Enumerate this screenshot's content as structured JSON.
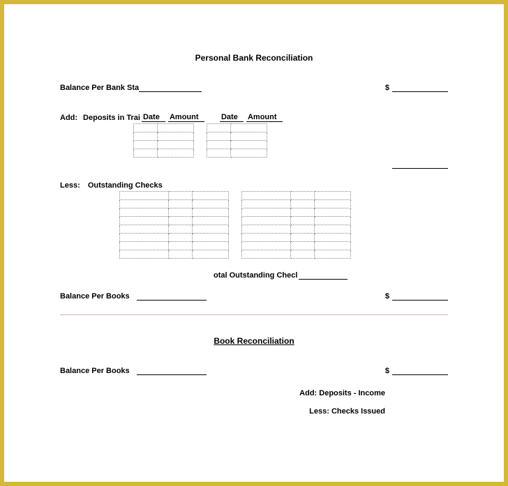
{
  "title": "Personal Bank Reconciliation",
  "balance_bank_label": "Balance Per Bank Sta",
  "dollar": "$",
  "add_label": "Add:",
  "deposits_transit_label": "Deposits in Trai",
  "date_header": "Date",
  "amount_header": "Amount",
  "less_label": "Less:",
  "outstanding_checks_label": "Outstanding Checks",
  "total_outstanding_label": "otal Outstanding Checl",
  "balance_books_label": "Balance Per Books",
  "subtitle": "Book Reconciliation",
  "balance_books2_label": "Balance Per Books",
  "add_deposits_income": "Add:  Deposits - Income",
  "less_checks_issued": "Less:  Checks Issued",
  "layout": {
    "deposits_rows": 4,
    "checks_rows": 8,
    "col_date_w": 34,
    "col_amt_w": 52,
    "checks_col1_w": 70,
    "checks_col2_w": 34,
    "checks_col3_w": 52
  },
  "colors": {
    "border": "#d4b838",
    "divider": "#d8a8c0",
    "dotted": "#888888",
    "text": "#000000",
    "bg": "#ffffff"
  }
}
